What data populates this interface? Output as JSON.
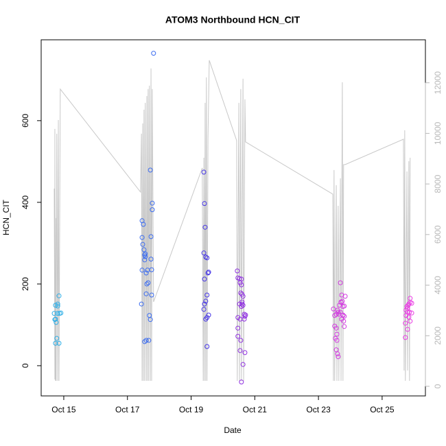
{
  "chart_data": {
    "type": "scatter",
    "title": "ATOM3 Northbound HCN_CIT",
    "xlabel": "Date",
    "ylabel": "HCN_CIT",
    "xlim": [
      14.29,
      26.36
    ],
    "ylim": [
      -74,
      798
    ],
    "y2lim": [
      -380,
      13700
    ],
    "xticks": [
      {
        "value": 15,
        "label": "Oct 15"
      },
      {
        "value": 17,
        "label": "Oct 17"
      },
      {
        "value": 19,
        "label": "Oct 19"
      },
      {
        "value": 21,
        "label": "Oct 21"
      },
      {
        "value": 23,
        "label": "Oct 23"
      },
      {
        "value": 25,
        "label": "Oct 25"
      }
    ],
    "yticks": [
      0,
      200,
      400,
      600
    ],
    "y2ticks": [
      0,
      2000,
      4000,
      6000,
      8000,
      10000,
      12000
    ],
    "line": {
      "color": "#c8c8c8",
      "axis": "y2",
      "x": [
        14.7,
        14.72,
        14.72,
        14.74,
        14.76,
        14.76,
        14.78,
        14.81,
        14.83,
        14.85,
        14.89,
        17.41,
        17.44,
        17.46,
        17.48,
        17.5,
        17.52,
        17.54,
        17.56,
        17.59,
        17.61,
        17.63,
        17.65,
        17.67,
        17.69,
        17.72,
        17.74,
        17.76,
        17.78,
        17.82,
        19.35,
        19.38,
        19.4,
        19.42,
        19.44,
        19.46,
        19.48,
        19.5,
        19.53,
        19.57,
        20.43,
        20.45,
        20.5,
        20.52,
        20.56,
        20.58,
        20.63,
        20.65,
        20.69,
        20.71,
        23.45,
        23.47,
        23.49,
        23.51,
        23.56,
        23.58,
        23.62,
        23.64,
        23.69,
        23.71,
        23.75,
        23.77,
        23.79,
        23.84,
        25.67,
        25.69,
        25.71,
        25.73,
        25.78,
        25.8,
        25.84,
        25.86,
        25.88
      ],
      "values": [
        7816,
        271,
        10178,
        217,
        6649,
        217,
        9988,
        217,
        10530,
        217,
        11752,
        7681,
        9988,
        217,
        10395,
        217,
        10937,
        217,
        11209,
        217,
        11480,
        217,
        11752,
        217,
        11887,
        217,
        12566,
        217,
        11752,
        3338,
        8631,
        217,
        9038,
        217,
        11209,
        217,
        12213,
        217,
        9852,
        12892,
        9716,
        217,
        11209,
        217,
        11752,
        217,
        12159,
        217,
        11345,
        9662,
        7599,
        217,
        8549,
        217,
        7952,
        217,
        7138,
        217,
        8223,
        217,
        12023,
        217,
        8766,
        8766,
        9770,
        624,
        10123,
        217,
        8495,
        624,
        8902,
        217,
        9038
      ]
    },
    "series": [
      {
        "color": "#2eaee6",
        "x": [
          14.7,
          14.74,
          14.81,
          14.81,
          14.74,
          14.76,
          14.78,
          14.74,
          14.85,
          14.85,
          14.87,
          14.81,
          14.91,
          14.72
        ],
        "values": [
          128,
          148,
          151,
          146,
          114,
          106,
          67,
          55,
          55,
          171,
          128,
          128,
          129,
          113
        ]
      },
      {
        "color": "#3b6cf0",
        "x": [
          17.46,
          17.46,
          17.5,
          17.48,
          17.52,
          17.54,
          17.56,
          17.54,
          17.46,
          17.59,
          17.63,
          17.61,
          17.65,
          17.59,
          17.44,
          17.54,
          17.59,
          17.67,
          17.69,
          17.72,
          17.72,
          17.78,
          17.78,
          17.74,
          17.74,
          17.76,
          17.76,
          17.82,
          17.56
        ],
        "values": [
          355,
          314,
          346,
          297,
          284,
          271,
          267,
          259,
          234,
          227,
          234,
          200,
          203,
          176,
          151,
          59,
          62,
          62,
          123,
          113,
          479,
          398,
          382,
          316,
          261,
          235,
          173,
          765,
          274
        ]
      },
      {
        "color": "#4433e6",
        "x": [
          19.4,
          19.42,
          19.44,
          19.4,
          19.46,
          19.5,
          19.53,
          19.55,
          19.42,
          19.5,
          19.42,
          19.46,
          19.4,
          19.46,
          19.5,
          19.55,
          19.5
        ],
        "values": [
          474,
          397,
          339,
          276,
          266,
          264,
          227,
          229,
          212,
          173,
          151,
          158,
          138,
          114,
          118,
          124,
          47
        ]
      },
      {
        "color": "#8f2fe0",
        "x": [
          20.45,
          20.47,
          20.52,
          20.58,
          20.54,
          20.58,
          20.56,
          20.6,
          20.63,
          20.6,
          20.52,
          20.6,
          20.58,
          20.63,
          20.47,
          20.54,
          20.67,
          20.69,
          20.67,
          20.71,
          20.47,
          20.47,
          20.56,
          20.54,
          20.69,
          20.63,
          20.58
        ],
        "values": [
          232,
          215,
          213,
          212,
          203,
          198,
          178,
          175,
          170,
          156,
          151,
          151,
          145,
          148,
          118,
          114,
          126,
          121,
          114,
          124,
          92,
          72,
          62,
          37,
          32,
          3,
          -40
        ]
      },
      {
        "color": "#d23be0",
        "x": [
          23.47,
          23.51,
          23.56,
          23.6,
          23.62,
          23.64,
          23.51,
          23.56,
          23.58,
          23.53,
          23.58,
          23.56,
          23.6,
          23.62,
          23.69,
          23.73,
          23.75,
          23.71,
          23.77,
          23.81,
          23.77,
          23.73,
          23.79,
          23.81,
          23.84,
          23.66,
          23.69,
          23.77,
          23.71,
          23.81
        ],
        "values": [
          139,
          123,
          126,
          136,
          131,
          126,
          97,
          92,
          77,
          67,
          62,
          39,
          29,
          22,
          203,
          173,
          158,
          155,
          145,
          146,
          123,
          114,
          109,
          96,
          170,
          148,
          131,
          124,
          156,
          121
        ]
      },
      {
        "color": "#ea3ae4",
        "x": [
          25.73,
          25.8,
          25.73,
          25.78,
          25.75,
          25.82,
          25.84,
          25.88,
          25.88,
          25.8,
          25.86,
          25.84,
          25.75,
          25.88,
          25.93,
          25.93,
          25.8
        ],
        "values": [
          104,
          89,
          69,
          145,
          136,
          148,
          151,
          165,
          155,
          131,
          131,
          119,
          123,
          109,
          129,
          153,
          141
        ]
      }
    ]
  }
}
